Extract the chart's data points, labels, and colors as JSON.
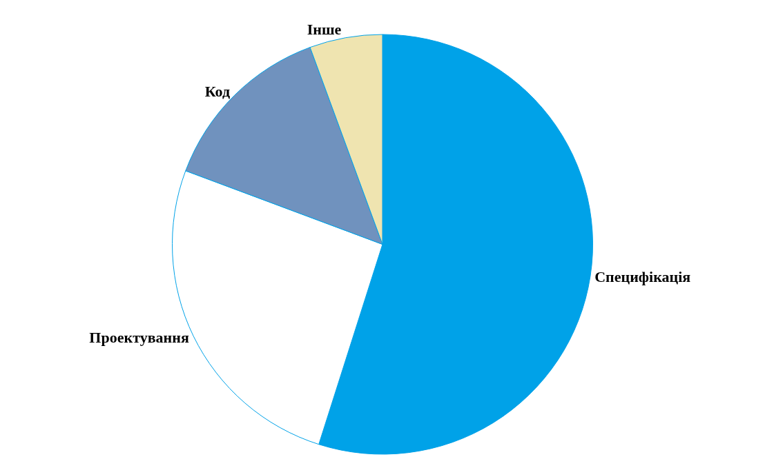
{
  "chart_data": {
    "type": "pie",
    "categories": [
      "Специфікація",
      "Проектування",
      "Код",
      "Інше"
    ],
    "values": [
      54.9,
      25.8,
      13.7,
      5.6
    ],
    "colors": [
      "#00a2e8",
      "#ffffff",
      "#7092be",
      "#efe4b0"
    ],
    "legend": false
  }
}
